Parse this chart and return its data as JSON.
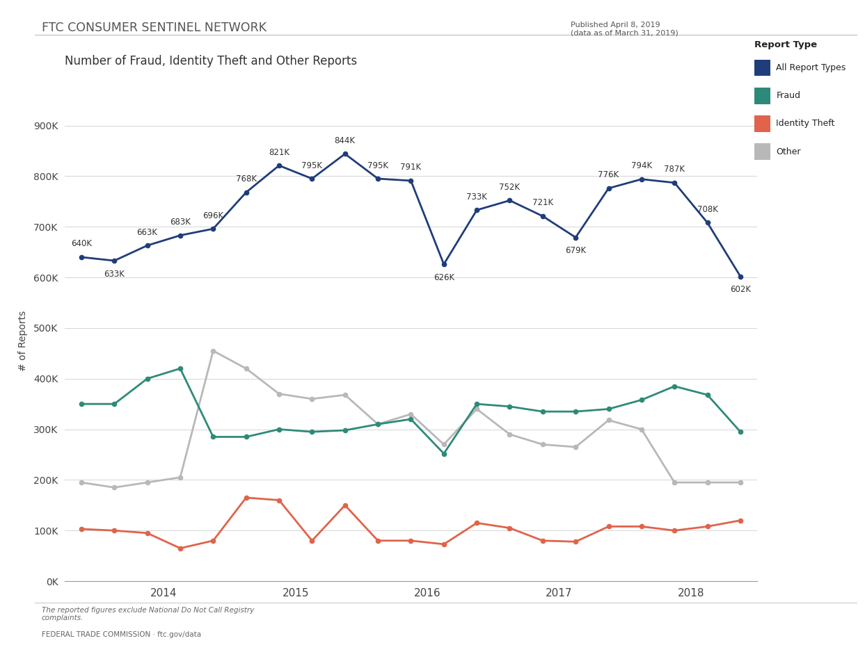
{
  "title": "Number of Fraud, Identity Theft and Other Reports",
  "header": "FTC CONSUMER SENTINEL NETWORK",
  "published": "Published April 8, 2019\n(data as of March 31, 2019)",
  "footer_note": "The reported figures exclude National Do Not Call Registry\ncomplaints.",
  "footer_source": "FEDERAL TRADE COMMISSION · ftc.gov/data",
  "ylabel": "# of Reports",
  "legend_title": "Report Type",
  "all_reports": [
    640000,
    633000,
    663000,
    683000,
    696000,
    768000,
    821000,
    795000,
    844000,
    795000,
    791000,
    626000,
    733000,
    752000,
    721000,
    679000,
    776000,
    794000,
    787000,
    708000,
    602000
  ],
  "all_reports_labels": [
    "640K",
    "633K",
    "663K",
    "683K",
    "696K",
    "768K",
    "821K",
    "795K",
    "844K",
    "795K",
    "791K",
    "626K",
    "733K",
    "752K",
    "721K",
    "679K",
    "776K",
    "794K",
    "787K",
    "708K",
    "602K"
  ],
  "label_va": [
    1,
    -1,
    1,
    1,
    1,
    1,
    1,
    1,
    1,
    1,
    1,
    -1,
    1,
    1,
    1,
    -1,
    1,
    1,
    1,
    1,
    -1
  ],
  "fraud": [
    350000,
    350000,
    400000,
    420000,
    285000,
    285000,
    300000,
    295000,
    298000,
    310000,
    320000,
    252000,
    350000,
    345000,
    335000,
    335000,
    340000,
    358000,
    385000,
    368000,
    295000
  ],
  "identity_theft": [
    103000,
    100000,
    95000,
    65000,
    80000,
    165000,
    160000,
    80000,
    150000,
    80000,
    80000,
    73000,
    115000,
    105000,
    80000,
    78000,
    108000,
    108000,
    100000,
    108000,
    120000
  ],
  "other": [
    195000,
    185000,
    195000,
    205000,
    455000,
    420000,
    370000,
    360000,
    368000,
    310000,
    330000,
    270000,
    340000,
    290000,
    270000,
    265000,
    318000,
    300000,
    195000,
    195000,
    195000
  ],
  "all_color": "#1f3d7a",
  "fraud_color": "#2e8a78",
  "identity_color": "#e0634a",
  "other_color": "#b8b8b8",
  "x_tick_centers": [
    2.5,
    6.5,
    10.5,
    14.5,
    18.5
  ],
  "x_tick_labels": [
    "2014",
    "2015",
    "2016",
    "2017",
    "2018"
  ],
  "yticks": [
    0,
    100000,
    200000,
    300000,
    400000,
    500000,
    600000,
    700000,
    800000,
    900000
  ]
}
